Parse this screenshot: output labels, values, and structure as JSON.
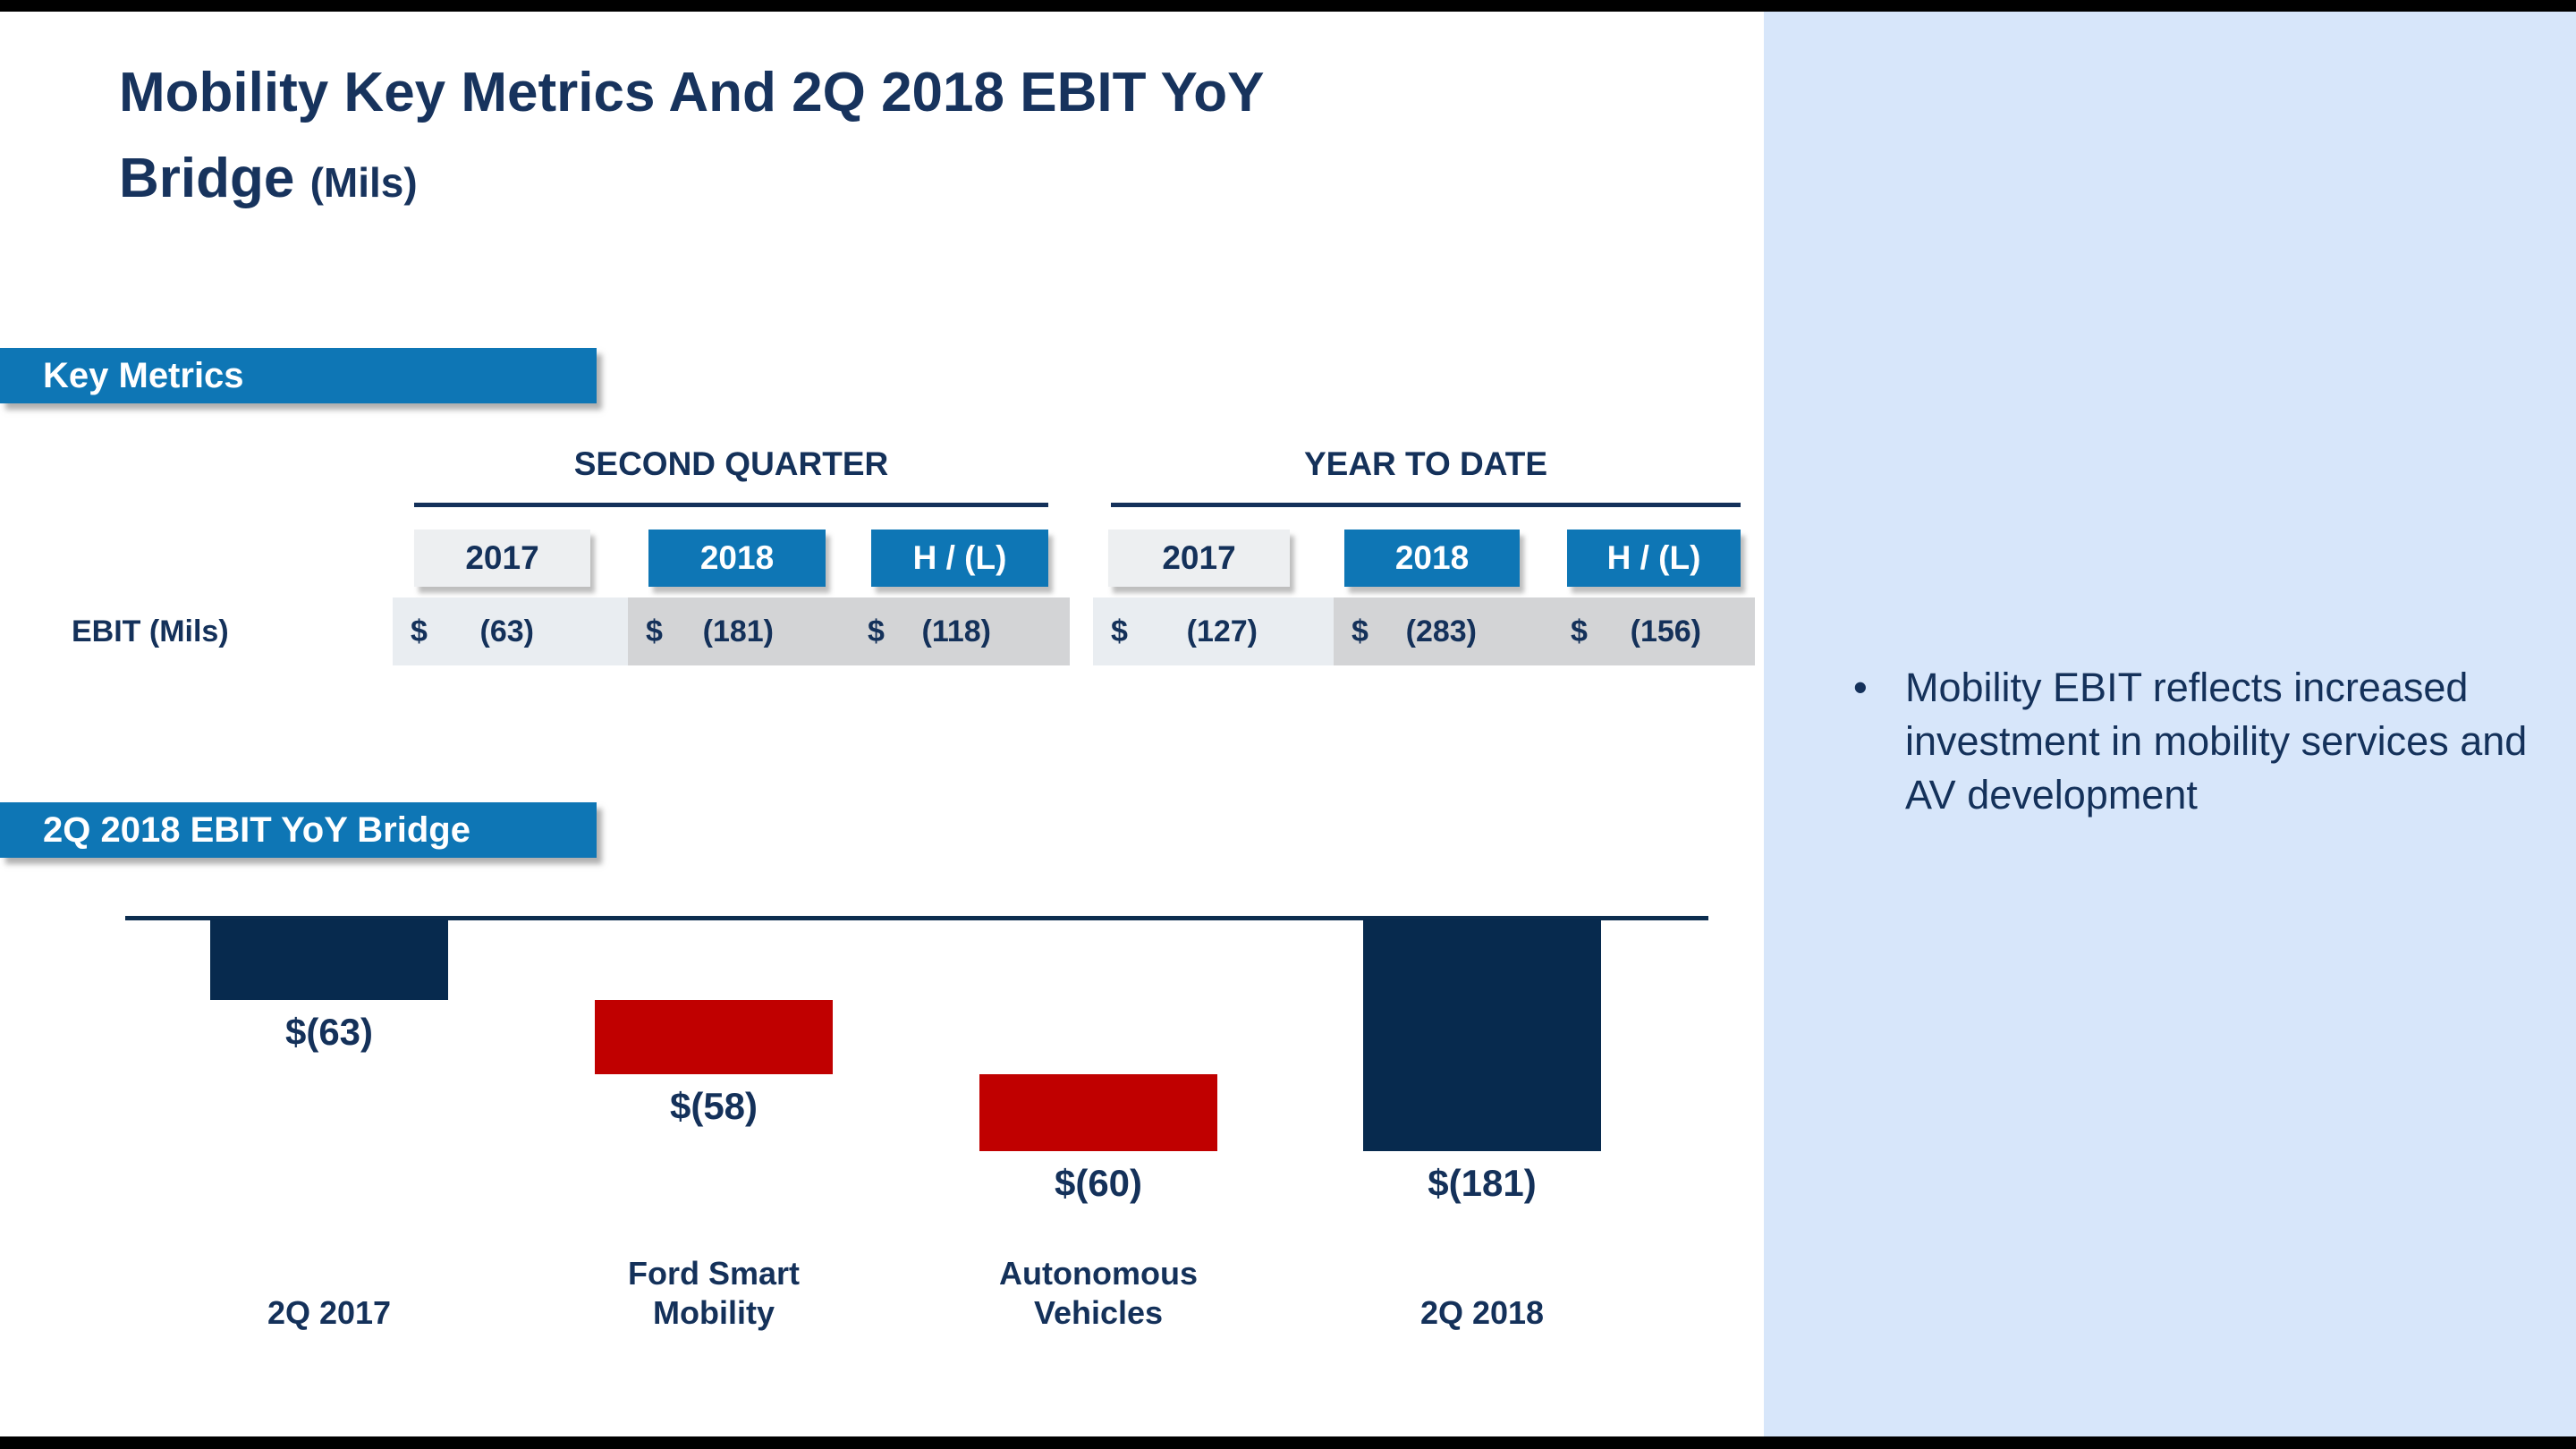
{
  "page": {
    "title_line1": "Mobility Key Metrics And 2Q 2018 EBIT YoY",
    "title_line2": "Bridge",
    "title_unit": "(Mils)"
  },
  "key_metrics": {
    "banner": "Key Metrics",
    "row_label": "EBIT (Mils)",
    "second_quarter": {
      "label": "SECOND QUARTER",
      "col_2017": "2017",
      "col_2018": "2018",
      "col_hl": "H / (L)",
      "val_2017": {
        "cur": "$",
        "amt": "(63)"
      },
      "val_2018": {
        "cur": "$",
        "amt": "(181)"
      },
      "val_hl": {
        "cur": "$",
        "amt": "(118)"
      }
    },
    "year_to_date": {
      "label": "YEAR TO DATE",
      "col_2017": "2017",
      "col_2018": "2018",
      "col_hl": "H / (L)",
      "val_2017": {
        "cur": "$",
        "amt": "(127)"
      },
      "val_2018": {
        "cur": "$",
        "amt": "(283)"
      },
      "val_hl": {
        "cur": "$",
        "amt": "(156)"
      }
    }
  },
  "bridge": {
    "banner": "2Q 2018 EBIT YoY Bridge"
  },
  "sidebar": {
    "bullet_glyph": "•",
    "bullet_text": "Mobility EBIT reflects increased investment in mobility services and AV development"
  },
  "chart_data": {
    "type": "bar",
    "subtype": "waterfall",
    "title": "2Q 2018 EBIT YoY Bridge",
    "units": "$ Mils",
    "categories": [
      "2Q 2017",
      "Ford Smart Mobility",
      "Autonomous Vehicles",
      "2Q 2018"
    ],
    "values": [
      -63,
      -58,
      -60,
      -181
    ],
    "value_labels": [
      "$(63)",
      "$(58)",
      "$(60)",
      "$(181)"
    ],
    "bar_roles": [
      "total",
      "delta",
      "delta",
      "total"
    ],
    "colors": {
      "total_bar": "#072a4e",
      "delta_bar": "#c00000",
      "baseline": "#0c2d4f"
    },
    "baseline_value": 0,
    "ylim": [
      -200,
      0
    ],
    "orientation": "vertical",
    "gridlines": false,
    "legend": false
  }
}
